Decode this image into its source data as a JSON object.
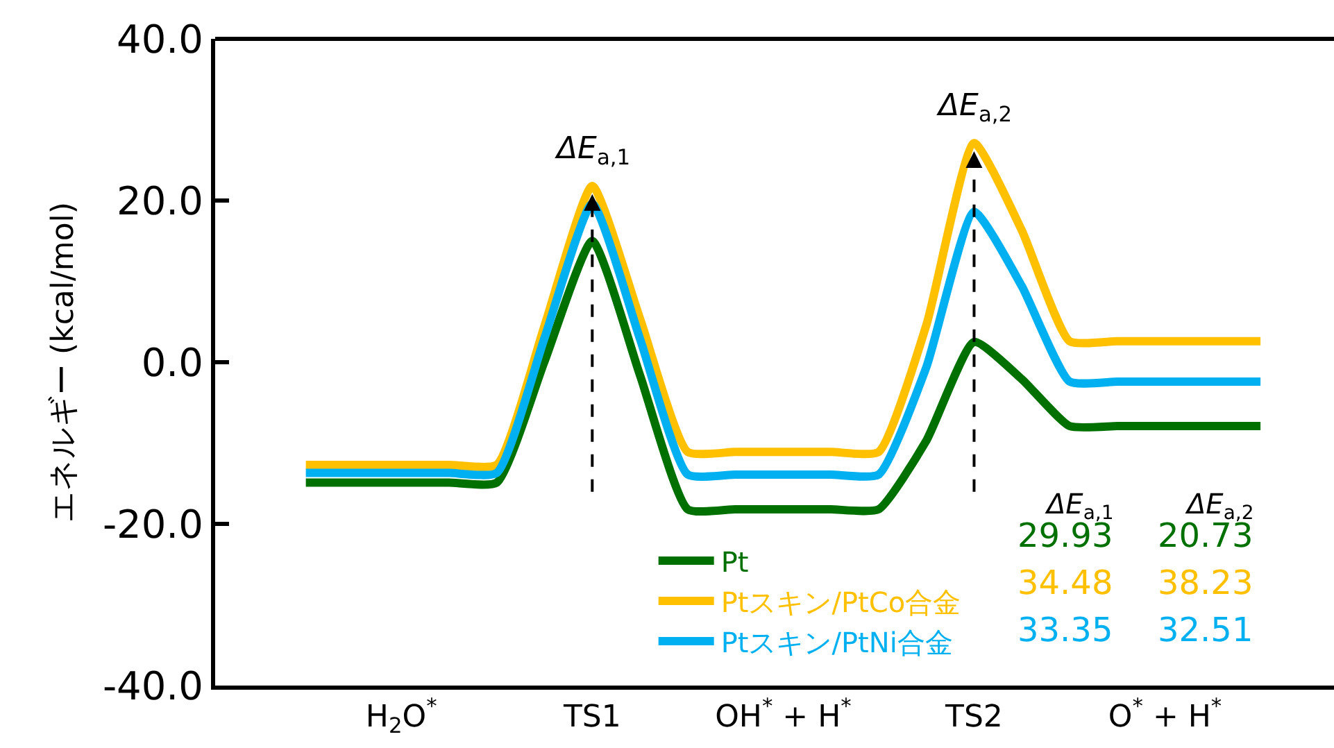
{
  "chart_data": {
    "type": "line",
    "ylabel": "エネルギー (kcal/mol)",
    "categories": [
      null,
      null,
      "H$_{2}$O$^{*}$",
      null,
      null,
      null,
      "TS1",
      null,
      null,
      null,
      "OH$^{*}$ + H$^{*}$",
      null,
      null,
      null,
      "TS2",
      null,
      null,
      null,
      "O$^{*}$ + H$^{*}$",
      null,
      null
    ],
    "ylim": [
      -40,
      40
    ],
    "yticks": [
      {
        "value": -40,
        "label": "-40.0"
      },
      {
        "value": -20,
        "label": "-20.0"
      },
      {
        "value": 0,
        "label": "0.0"
      },
      {
        "value": 20,
        "label": "20.0"
      },
      {
        "value": 40,
        "label": "40.0"
      }
    ],
    "series": [
      {
        "name": "Pt",
        "color": "#007000",
        "values": [
          -14.9,
          -14.9,
          -14.9,
          -14.9,
          -14.9,
          0.1,
          15.0,
          -1.6,
          -18.2,
          -18.2,
          -18.2,
          -18.2,
          -18.2,
          -9.7,
          2.5,
          -2.1,
          -7.9,
          -7.9,
          -7.9,
          -7.9,
          -7.9
        ]
      },
      {
        "name": "Ptスキン/PtCo合金",
        "color": "#ffc000",
        "values": [
          -12.7,
          -12.7,
          -12.7,
          -12.7,
          -12.7,
          4.5,
          21.8,
          5.4,
          -11.1,
          -11.1,
          -11.1,
          -11.1,
          -11.1,
          4.6,
          27.1,
          16.3,
          2.6,
          2.6,
          2.6,
          2.6,
          2.6
        ]
      },
      {
        "name": "Ptスキン/PtNi合金",
        "color": "#00b0f0",
        "values": [
          -13.7,
          -13.7,
          -13.7,
          -13.7,
          -13.7,
          3.0,
          19.6,
          2.9,
          -13.9,
          -13.9,
          -13.9,
          -13.9,
          -13.9,
          -0.6,
          18.6,
          9.4,
          -2.4,
          -2.4,
          -2.4,
          -2.4,
          -2.4
        ]
      }
    ],
    "annotations": [
      "ΔE$_{a,1}$",
      "ΔE$_{a,2}$",
      "ΔE$_{a,1}$",
      "ΔE$_{a,2}$",
      "29.93",
      "20.73",
      "34.48",
      "38.23",
      "33.35",
      "32.51"
    ],
    "legend": "bottom right",
    "marker": "none",
    "line_style": "solid"
  }
}
